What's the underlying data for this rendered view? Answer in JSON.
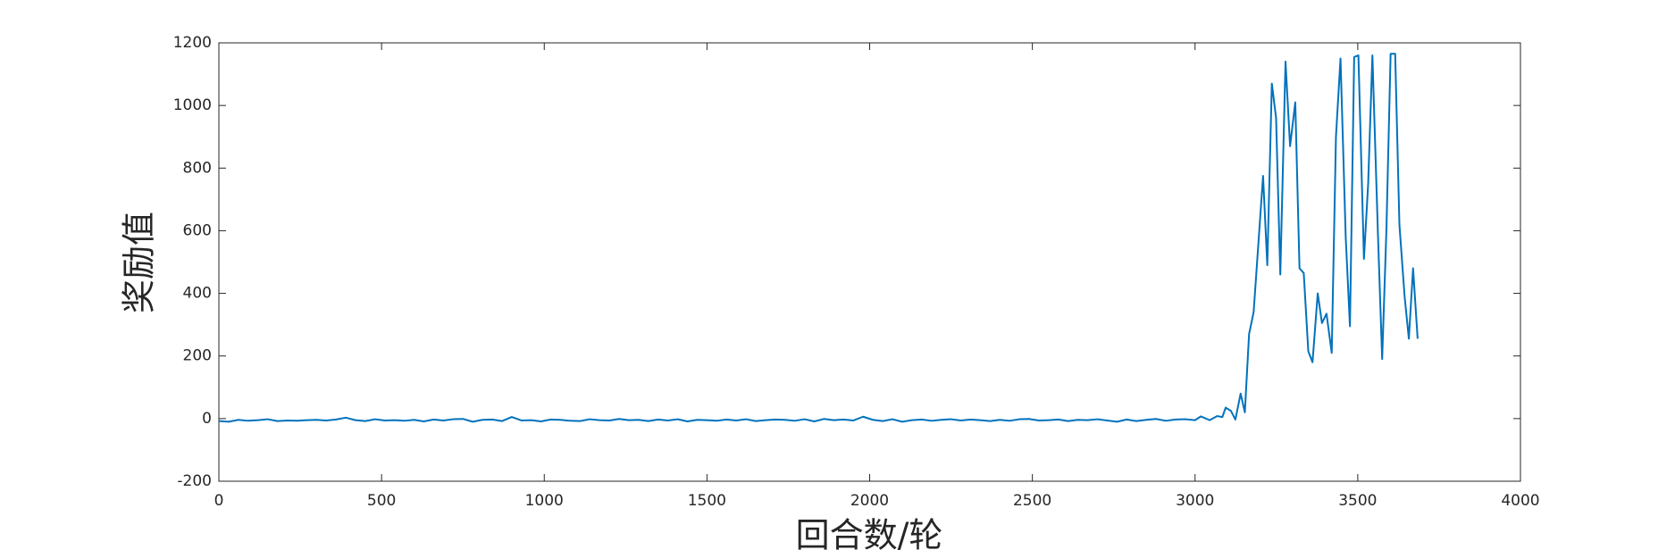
{
  "chart_data": {
    "type": "line",
    "x_label": "回合数/轮",
    "y_label": "奖励值",
    "xlim": [
      0,
      4000
    ],
    "xticks": [
      0,
      500,
      1000,
      1500,
      2000,
      2500,
      3000,
      3500,
      4000
    ],
    "ylim": [
      -200,
      1200
    ],
    "yticks": [
      -200,
      0,
      200,
      400,
      600,
      800,
      1000,
      1200
    ],
    "grid": false,
    "x": [
      0,
      30,
      60,
      90,
      120,
      150,
      180,
      210,
      240,
      270,
      300,
      330,
      360,
      390,
      420,
      450,
      480,
      510,
      540,
      570,
      600,
      630,
      660,
      690,
      720,
      750,
      780,
      810,
      840,
      870,
      900,
      930,
      960,
      990,
      1020,
      1050,
      1080,
      1110,
      1140,
      1170,
      1200,
      1230,
      1260,
      1290,
      1320,
      1350,
      1380,
      1410,
      1440,
      1470,
      1500,
      1530,
      1560,
      1590,
      1620,
      1650,
      1680,
      1710,
      1740,
      1770,
      1800,
      1830,
      1860,
      1890,
      1920,
      1950,
      1980,
      2010,
      2040,
      2070,
      2100,
      2130,
      2160,
      2190,
      2220,
      2250,
      2280,
      2310,
      2340,
      2370,
      2400,
      2430,
      2460,
      2490,
      2520,
      2550,
      2580,
      2610,
      2640,
      2670,
      2700,
      2730,
      2760,
      2790,
      2820,
      2850,
      2880,
      2910,
      2940,
      2970,
      3000,
      3018,
      3045,
      3068,
      3084,
      3094,
      3110,
      3124,
      3140,
      3153,
      3166,
      3180,
      3209,
      3222,
      3236,
      3249,
      3262,
      3278,
      3292,
      3308,
      3321,
      3334,
      3348,
      3361,
      3377,
      3390,
      3404,
      3420,
      3433,
      3447,
      3463,
      3476,
      3489,
      3502,
      3519,
      3532,
      3545,
      3562,
      3575,
      3588,
      3601,
      3615,
      3628,
      3644,
      3657,
      3670,
      3684
    ],
    "series": [
      {
        "name": "reward",
        "color": "#0072bd",
        "values": [
          -8,
          -10,
          -4,
          -7,
          -5,
          -2,
          -8,
          -6,
          -7,
          -5,
          -4,
          -6,
          -3,
          3,
          -5,
          -8,
          -2,
          -6,
          -5,
          -7,
          -4,
          -9,
          -3,
          -6,
          -2,
          -1,
          -10,
          -4,
          -3,
          -8,
          5,
          -6,
          -5,
          -9,
          -3,
          -4,
          -7,
          -8,
          -2,
          -5,
          -6,
          -1,
          -5,
          -4,
          -8,
          -3,
          -6,
          -2,
          -9,
          -4,
          -5,
          -7,
          -3,
          -6,
          -2,
          -8,
          -5,
          -3,
          -4,
          -7,
          -2,
          -9,
          -1,
          -5,
          -3,
          -6,
          6,
          -4,
          -8,
          -2,
          -10,
          -5,
          -3,
          -7,
          -4,
          -2,
          -6,
          -3,
          -5,
          -8,
          -4,
          -7,
          -2,
          -1,
          -6,
          -5,
          -3,
          -8,
          -4,
          -5,
          -2,
          -6,
          -10,
          -3,
          -8,
          -4,
          -1,
          -7,
          -3,
          -2,
          -5,
          7,
          -5,
          8,
          5,
          35,
          25,
          -3,
          80,
          20,
          270,
          340,
          775,
          490,
          1070,
          960,
          460,
          1140,
          870,
          1010,
          480,
          465,
          215,
          180,
          400,
          305,
          335,
          210,
          900,
          1150,
          580,
          295,
          1155,
          1160,
          510,
          750,
          1160,
          590,
          190,
          600,
          1165,
          1165,
          620,
          390,
          255,
          480,
          255
        ]
      }
    ]
  }
}
